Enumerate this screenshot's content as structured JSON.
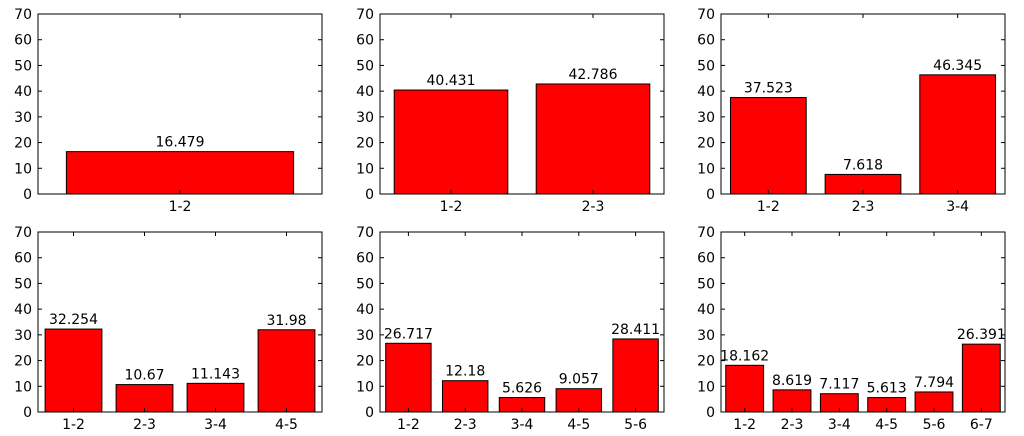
{
  "colors": {
    "bar": "#ff0000",
    "edge": "#000000",
    "axis": "#000000",
    "text": "#000000",
    "background": "#ffffff"
  },
  "chart_data": [
    {
      "type": "bar",
      "title": "",
      "xlabel": "",
      "ylabel": "",
      "ylim": [
        0,
        70
      ],
      "yticks": [
        "0",
        "10",
        "20",
        "30",
        "40",
        "50",
        "60",
        "70"
      ],
      "categories": [
        "1-2"
      ],
      "values": [
        16.479
      ],
      "labels": [
        "16.479"
      ]
    },
    {
      "type": "bar",
      "title": "",
      "xlabel": "",
      "ylabel": "",
      "ylim": [
        0,
        70
      ],
      "yticks": [
        "0",
        "10",
        "20",
        "30",
        "40",
        "50",
        "60",
        "70"
      ],
      "categories": [
        "1-2",
        "2-3"
      ],
      "values": [
        40.431,
        42.786
      ],
      "labels": [
        "40.431",
        "42.786"
      ]
    },
    {
      "type": "bar",
      "title": "",
      "xlabel": "",
      "ylabel": "",
      "ylim": [
        0,
        70
      ],
      "yticks": [
        "0",
        "10",
        "20",
        "30",
        "40",
        "50",
        "60",
        "70"
      ],
      "categories": [
        "1-2",
        "2-3",
        "3-4"
      ],
      "values": [
        37.523,
        7.618,
        46.345
      ],
      "labels": [
        "37.523",
        "7.618",
        "46.345"
      ]
    },
    {
      "type": "bar",
      "title": "",
      "xlabel": "",
      "ylabel": "",
      "ylim": [
        0,
        70
      ],
      "yticks": [
        "0",
        "10",
        "20",
        "30",
        "40",
        "50",
        "60",
        "70"
      ],
      "categories": [
        "1-2",
        "2-3",
        "3-4",
        "4-5"
      ],
      "values": [
        32.254,
        10.67,
        11.143,
        31.98
      ],
      "labels": [
        "32.254",
        "10.67",
        "11.143",
        "31.98"
      ]
    },
    {
      "type": "bar",
      "title": "",
      "xlabel": "",
      "ylabel": "",
      "ylim": [
        0,
        70
      ],
      "yticks": [
        "0",
        "10",
        "20",
        "30",
        "40",
        "50",
        "60",
        "70"
      ],
      "categories": [
        "1-2",
        "2-3",
        "3-4",
        "4-5",
        "5-6"
      ],
      "values": [
        26.717,
        12.18,
        5.626,
        9.057,
        28.411
      ],
      "labels": [
        "26.717",
        "12.18",
        "5.626",
        "9.057",
        "28.411"
      ]
    },
    {
      "type": "bar",
      "title": "",
      "xlabel": "",
      "ylabel": "",
      "ylim": [
        0,
        70
      ],
      "yticks": [
        "0",
        "10",
        "20",
        "30",
        "40",
        "50",
        "60",
        "70"
      ],
      "categories": [
        "1-2",
        "2-3",
        "3-4",
        "4-5",
        "5-6",
        "6-7"
      ],
      "values": [
        18.162,
        8.619,
        7.117,
        5.613,
        7.794,
        26.391
      ],
      "labels": [
        "18.162",
        "8.619",
        "7.117",
        "5.613",
        "7.794",
        "26.391"
      ]
    }
  ]
}
